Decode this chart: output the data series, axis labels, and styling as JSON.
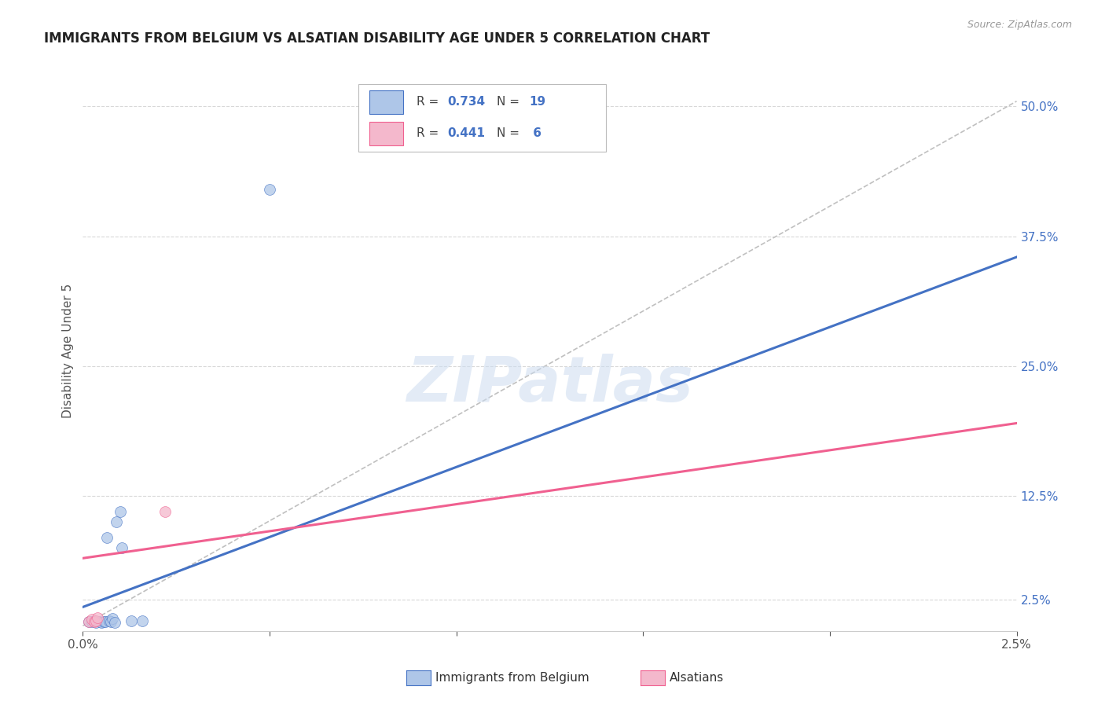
{
  "title": "IMMIGRANTS FROM BELGIUM VS ALSATIAN DISABILITY AGE UNDER 5 CORRELATION CHART",
  "source": "Source: ZipAtlas.com",
  "ylabel": "Disability Age Under 5",
  "y_tick_positions": [
    0.025,
    0.125,
    0.25,
    0.375,
    0.5
  ],
  "y_tick_labels": [
    "2.5%",
    "12.5%",
    "25.0%",
    "37.5%",
    "50.0%"
  ],
  "x_lim": [
    0.0,
    0.025
  ],
  "y_lim": [
    -0.005,
    0.535
  ],
  "background_color": "#ffffff",
  "grid_color": "#d8d8d8",
  "watermark": "ZIPatlas",
  "blue_scatter_x": [
    0.00015,
    0.00025,
    0.0003,
    0.00035,
    0.00045,
    0.0005,
    0.00055,
    0.0006,
    0.00065,
    0.0007,
    0.00075,
    0.0008,
    0.00085,
    0.0009,
    0.001,
    0.00105,
    0.0013,
    0.0016,
    0.005
  ],
  "blue_scatter_y": [
    0.004,
    0.004,
    0.005,
    0.003,
    0.004,
    0.003,
    0.004,
    0.004,
    0.085,
    0.005,
    0.004,
    0.007,
    0.003,
    0.1,
    0.11,
    0.075,
    0.005,
    0.005,
    0.42
  ],
  "pink_scatter_x": [
    0.00015,
    0.00025,
    0.0003,
    0.00035,
    0.0004,
    0.0022
  ],
  "pink_scatter_y": [
    0.004,
    0.006,
    0.004,
    0.005,
    0.008,
    0.11
  ],
  "blue_line_color": "#4472c4",
  "pink_line_color": "#f06090",
  "blue_scatter_facecolor": "#aec6e8",
  "pink_scatter_facecolor": "#f4b8cc",
  "dashed_line_color": "#c0c0c0",
  "title_color": "#222222",
  "right_label_color": "#4472c4",
  "blue_trendline_x": [
    0.0,
    0.025
  ],
  "blue_trendline_y": [
    0.018,
    0.355
  ],
  "pink_trendline_x": [
    0.0,
    0.025
  ],
  "pink_trendline_y": [
    0.065,
    0.195
  ],
  "diag_line_x": [
    0.0,
    0.025
  ],
  "diag_line_y": [
    0.0,
    0.505
  ]
}
